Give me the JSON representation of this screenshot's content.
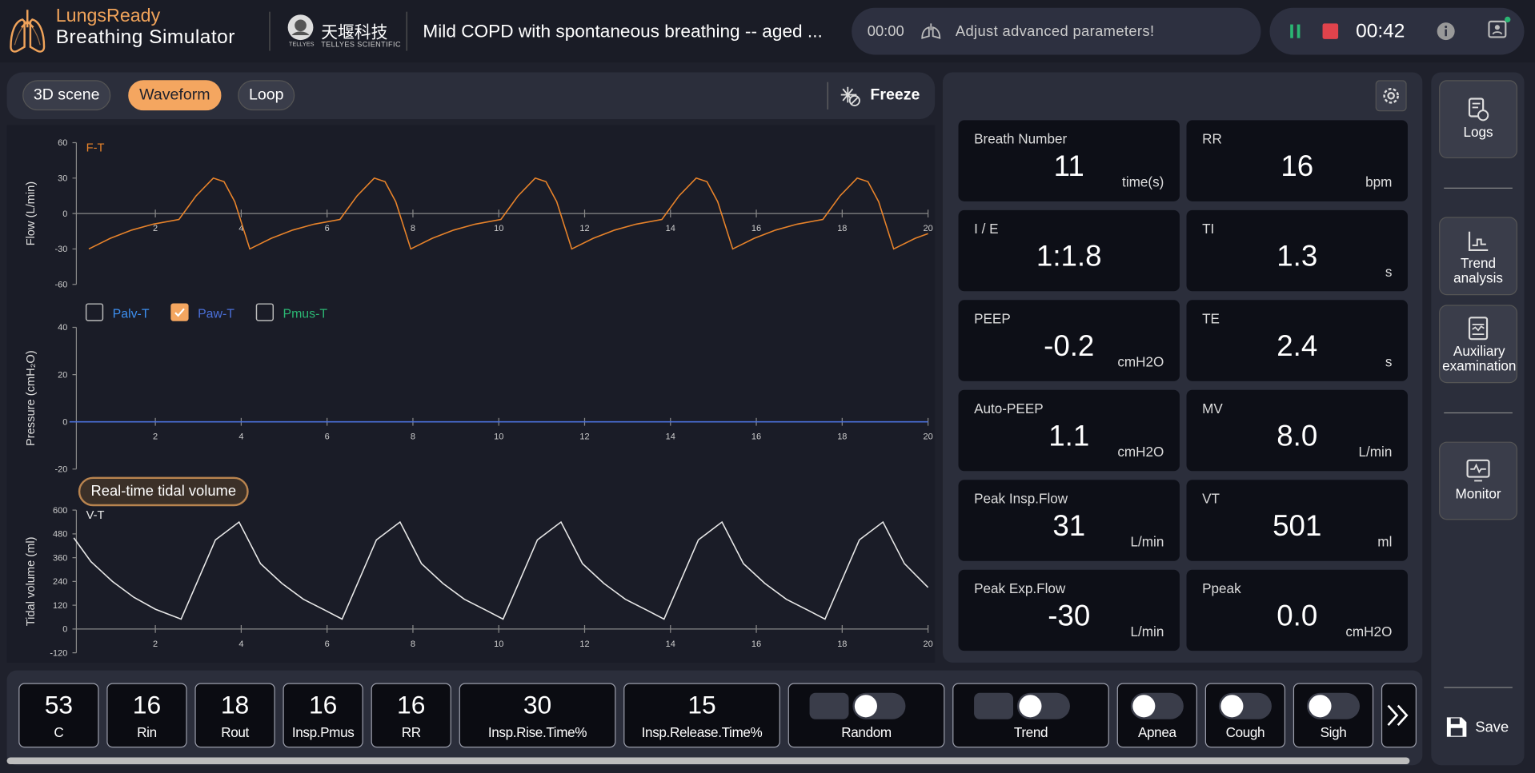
{
  "header": {
    "brand": "LungsReady",
    "product": "Breathing Simulator",
    "logo_text": "TELLYES",
    "company_cn": "天堰科技",
    "company_en": "TELLYES SCIENTIFIC",
    "scenario": "Mild COPD with spontaneous breathing -- aged ...",
    "timer": "00:00",
    "message": "Adjust advanced parameters!",
    "run_time": "00:42"
  },
  "tabs": [
    "3D scene",
    "Waveform",
    "Loop"
  ],
  "active_tab": 1,
  "freeze": "Freeze",
  "charts": [
    {
      "type": "line",
      "label": "F-T",
      "y_label": "Flow (L/min)",
      "color": "#e8832a",
      "xlim": [
        0,
        20
      ],
      "ylim": [
        -60,
        60
      ],
      "xticks": [
        2,
        4,
        6,
        8,
        10,
        12,
        14,
        16,
        18,
        20
      ],
      "yticks": [
        60,
        30,
        0,
        -30,
        -60
      ],
      "x": [
        0.45,
        0.95,
        1.45,
        1.95,
        2.55,
        2.95,
        3.35,
        3.6,
        3.85,
        4.2,
        4.7,
        5.2,
        5.7,
        6.3,
        6.7,
        7.1,
        7.35,
        7.6,
        7.95,
        8.45,
        8.95,
        9.45,
        10.05,
        10.45,
        10.85,
        11.1,
        11.35,
        11.7,
        12.2,
        12.7,
        13.2,
        13.8,
        14.2,
        14.6,
        14.85,
        15.1,
        15.45,
        15.95,
        16.45,
        16.95,
        17.55,
        17.95,
        18.35,
        18.6,
        18.85,
        19.2,
        19.7,
        20
      ],
      "values": [
        -30,
        -21,
        -14,
        -9,
        -5,
        15,
        30,
        27,
        10,
        -30,
        -21,
        -14,
        -9,
        -5,
        15,
        30,
        27,
        10,
        -30,
        -21,
        -14,
        -9,
        -5,
        15,
        30,
        27,
        10,
        -30,
        -21,
        -14,
        -9,
        -5,
        15,
        30,
        27,
        10,
        -30,
        -21,
        -14,
        -9,
        -5,
        15,
        30,
        27,
        10,
        -30,
        -21,
        -17
      ]
    },
    {
      "type": "line",
      "y_label": "Pressure (cmH₂O)",
      "xlim": [
        0,
        20
      ],
      "ylim": [
        -20,
        40
      ],
      "xticks": [
        2,
        4,
        6,
        8,
        10,
        12,
        14,
        16,
        18,
        20
      ],
      "yticks": [
        40,
        20,
        0,
        -20
      ],
      "x": [
        0,
        20
      ],
      "series": [
        {
          "name": "Palv-T",
          "color": "#3d8ff0",
          "checked": false
        },
        {
          "name": "Paw-T",
          "color": "#4a6fd8",
          "checked": true,
          "values": [
            0,
            0
          ]
        },
        {
          "name": "Pmus-T",
          "color": "#2bb673",
          "checked": false
        }
      ]
    },
    {
      "type": "line",
      "label": "V-T",
      "y_label": "Tidal volume (ml)",
      "color": "#e8e8e8",
      "badge": "Real-time tidal volume",
      "xlim": [
        0,
        20
      ],
      "ylim": [
        -120,
        600
      ],
      "xticks": [
        2,
        4,
        6,
        8,
        10,
        12,
        14,
        16,
        18,
        20
      ],
      "yticks": [
        600,
        480,
        360,
        240,
        120,
        0,
        -120
      ],
      "x": [
        0.1,
        0.5,
        1,
        1.5,
        2,
        2.6,
        3,
        3.4,
        3.95,
        4.45,
        4.95,
        5.45,
        5.95,
        6.35,
        6.75,
        7.15,
        7.7,
        8.2,
        8.7,
        9.2,
        9.7,
        10.1,
        10.5,
        10.9,
        11.45,
        11.95,
        12.45,
        12.95,
        13.45,
        13.85,
        14.25,
        14.65,
        15.2,
        15.7,
        16.2,
        16.7,
        17.2,
        17.6,
        18,
        18.4,
        18.95,
        19.45,
        20
      ],
      "values": [
        460,
        340,
        240,
        160,
        100,
        50,
        250,
        450,
        540,
        330,
        230,
        150,
        95,
        50,
        250,
        450,
        540,
        330,
        230,
        150,
        95,
        50,
        250,
        450,
        540,
        330,
        230,
        150,
        95,
        50,
        250,
        450,
        540,
        330,
        230,
        150,
        95,
        50,
        250,
        450,
        540,
        330,
        210
      ]
    }
  ],
  "metrics": [
    {
      "label": "Breath Number",
      "value": "11",
      "unit": "time(s)"
    },
    {
      "label": "RR",
      "value": "16",
      "unit": "bpm"
    },
    {
      "label": "I / E",
      "value": "1:1.8"
    },
    {
      "label": "TI",
      "value": "1.3",
      "unit": "s"
    },
    {
      "label": "PEEP",
      "value": "-0.2",
      "unit": "cmH2O"
    },
    {
      "label": "TE",
      "value": "2.4",
      "unit": "s"
    },
    {
      "label": "Auto-PEEP",
      "value": "1.1",
      "unit": "cmH2O"
    },
    {
      "label": "MV",
      "value": "8.0",
      "unit": "L/min"
    },
    {
      "label": "Peak Insp.Flow",
      "value": "31",
      "unit": "L/min"
    },
    {
      "label": "VT",
      "value": "501",
      "unit": "ml"
    },
    {
      "label": "Peak Exp.Flow",
      "value": "-30",
      "unit": "L/min"
    },
    {
      "label": "Ppeak",
      "value": "0.0",
      "unit": "cmH2O"
    }
  ],
  "sidebar": [
    "Logs",
    "Trend analysis",
    "Auxiliary examination",
    "Monitor"
  ],
  "save": "Save",
  "params": [
    {
      "value": 53,
      "label": "C"
    },
    {
      "value": 16,
      "label": "Rin"
    },
    {
      "value": 18,
      "label": "Rout"
    },
    {
      "value": 16,
      "label": "Insp.Pmus"
    },
    {
      "value": 16,
      "label": "RR"
    },
    {
      "value": 30,
      "label": "Insp.Rise.Time%"
    },
    {
      "value": 15,
      "label": "Insp.Release.Time%"
    }
  ],
  "switches": [
    {
      "label": "Random",
      "on": false
    },
    {
      "label": "Trend",
      "on": false
    },
    {
      "label": "Apnea",
      "on": false
    },
    {
      "label": "Cough",
      "on": false
    },
    {
      "label": "Sigh",
      "on": false
    }
  ]
}
